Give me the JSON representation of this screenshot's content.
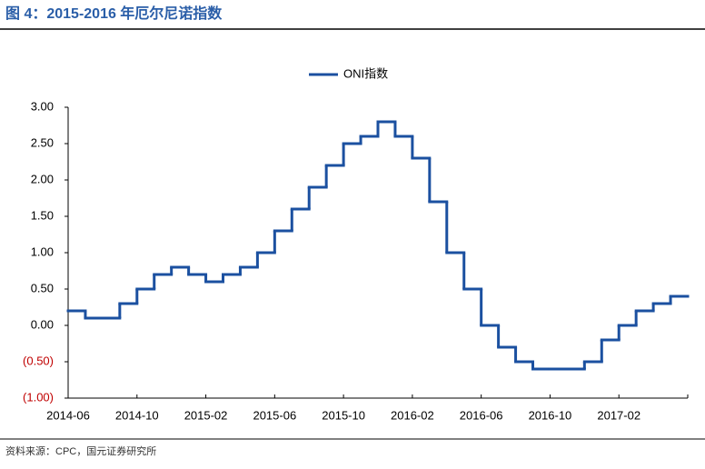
{
  "chart_data": {
    "type": "step-line",
    "title": "图 4：2015-2016 年厄尔尼诺指数",
    "source": "资料来源：CPC，国元证券研究所",
    "categories": [
      "2014-06",
      null,
      null,
      null,
      "2014-10",
      null,
      null,
      null,
      "2015-02",
      null,
      null,
      null,
      "2015-06",
      null,
      null,
      null,
      "2015-10",
      null,
      null,
      null,
      "2016-02",
      null,
      null,
      null,
      "2016-06",
      null,
      null,
      null,
      "2016-10",
      null,
      null,
      null,
      "2017-02",
      null,
      null,
      null
    ],
    "series": [
      {
        "name": "ONI指数",
        "color": "#1b50a0",
        "values": [
          0.2,
          0.1,
          0.1,
          0.3,
          0.5,
          0.7,
          0.8,
          0.7,
          0.6,
          0.7,
          0.8,
          1.0,
          1.3,
          1.6,
          1.9,
          2.2,
          2.5,
          2.6,
          2.8,
          2.6,
          2.3,
          1.7,
          1.0,
          0.5,
          0.0,
          -0.3,
          -0.5,
          -0.6,
          -0.6,
          -0.6,
          -0.5,
          -0.2,
          0.0,
          0.2,
          0.3,
          0.4
        ]
      }
    ],
    "ylim": [
      -1,
      3
    ],
    "yticks": [
      {
        "value": -1,
        "label": "(1.00)"
      },
      {
        "value": -0.5,
        "label": "(0.50)"
      },
      {
        "value": 0,
        "label": "0.00"
      },
      {
        "value": 0.5,
        "label": "0.50"
      },
      {
        "value": 1,
        "label": "1.00"
      },
      {
        "value": 1.5,
        "label": "1.50"
      },
      {
        "value": 2,
        "label": "2.00"
      },
      {
        "value": 2.5,
        "label": "2.50"
      },
      {
        "value": 3,
        "label": "3.00"
      }
    ],
    "negative_label_color": "#c00000",
    "legend": "top"
  }
}
